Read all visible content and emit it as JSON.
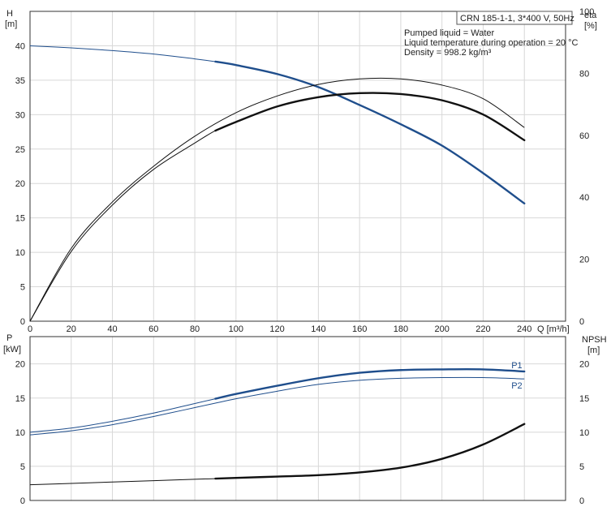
{
  "chart_data": {
    "type": "line",
    "title": "CRN 185-1-1, 3*400 V, 50Hz",
    "info": [
      "Pumped liquid = Water",
      "Liquid temperature during operation = 20 °C",
      "Density = 998.2 kg/m³"
    ],
    "colors": {
      "h": "#1f4e8c",
      "p": "#1f4e8c",
      "eta": "#111111",
      "npsh": "#111111",
      "grid": "#d8d8d8"
    },
    "x": {
      "label": "Q [m³/h]",
      "range": [
        0,
        260
      ],
      "ticks": [
        0,
        20,
        40,
        60,
        80,
        100,
        120,
        140,
        160,
        180,
        200,
        220,
        240
      ],
      "grid": true
    },
    "top": {
      "y_left": {
        "label_top": "H",
        "label_unit": "[m]",
        "range": [
          0,
          45
        ],
        "ticks": [
          0,
          5,
          10,
          15,
          20,
          25,
          30,
          35,
          40
        ]
      },
      "y_right": {
        "label_top": "eta",
        "label_unit": "[%]",
        "range": [
          0,
          100
        ],
        "ticks": [
          0,
          20,
          40,
          60,
          80,
          100
        ]
      },
      "series": [
        {
          "key": "H",
          "axis": "left",
          "color_key": "h",
          "x": [
            0,
            20,
            40,
            60,
            80,
            90,
            100,
            120,
            140,
            160,
            180,
            200,
            220,
            240
          ],
          "y": [
            40,
            39.7,
            39.3,
            38.8,
            38.1,
            37.7,
            37.2,
            35.9,
            34,
            31.4,
            28.6,
            25.5,
            21.5,
            17.1
          ],
          "bold_from": 90
        },
        {
          "key": "eta1",
          "axis": "right",
          "color_key": "eta",
          "x": [
            0,
            20,
            40,
            60,
            80,
            100,
            120,
            140,
            160,
            180,
            200,
            220,
            240
          ],
          "y": [
            0,
            23.5,
            38.5,
            50,
            59.7,
            67.3,
            72.7,
            76.4,
            78.2,
            78.2,
            76.2,
            71.8,
            62.5
          ],
          "bold_from": null
        },
        {
          "key": "eta2",
          "axis": "right",
          "color_key": "eta",
          "x": [
            0,
            20,
            40,
            60,
            80,
            90,
            100,
            120,
            140,
            160,
            180,
            200,
            220,
            240
          ],
          "y": [
            0,
            22.5,
            37.5,
            49,
            57.5,
            61.5,
            64.3,
            69.3,
            72.3,
            73.6,
            73.3,
            71.3,
            66.7,
            58.4
          ],
          "bold_from": 90
        }
      ]
    },
    "bottom": {
      "y_left": {
        "label_top": "P",
        "label_unit": "[kW]",
        "range": [
          0,
          24
        ],
        "ticks": [
          0,
          5,
          10,
          15,
          20
        ]
      },
      "y_right": {
        "label_top": "NPSH",
        "label_unit": "[m]",
        "range": [
          0,
          24
        ],
        "ticks": [
          0,
          5,
          10,
          15,
          20
        ]
      },
      "series": [
        {
          "key": "P1",
          "axis": "left",
          "color_key": "p",
          "label": "P1",
          "x": [
            0,
            20,
            40,
            60,
            80,
            90,
            100,
            120,
            140,
            160,
            180,
            200,
            220,
            240
          ],
          "y": [
            10,
            10.6,
            11.6,
            12.8,
            14.2,
            14.9,
            15.6,
            16.8,
            17.9,
            18.7,
            19.1,
            19.2,
            19.2,
            18.9
          ],
          "bold_from": 90
        },
        {
          "key": "P2",
          "axis": "left",
          "color_key": "p",
          "label": "P2",
          "x": [
            0,
            20,
            40,
            60,
            80,
            100,
            120,
            140,
            160,
            180,
            200,
            220,
            240
          ],
          "y": [
            9.6,
            10.2,
            11.1,
            12.3,
            13.6,
            14.9,
            16,
            17,
            17.6,
            17.9,
            18,
            18,
            17.8
          ],
          "bold_from": null
        },
        {
          "key": "NPSH",
          "axis": "right",
          "color_key": "npsh",
          "x": [
            0,
            20,
            40,
            60,
            80,
            90,
            100,
            120,
            140,
            160,
            180,
            200,
            220,
            240
          ],
          "y": [
            2.3,
            2.5,
            2.7,
            2.9,
            3.1,
            3.2,
            3.3,
            3.5,
            3.7,
            4.1,
            4.8,
            6.1,
            8.2,
            11.2
          ],
          "bold_from": 90
        }
      ]
    }
  }
}
